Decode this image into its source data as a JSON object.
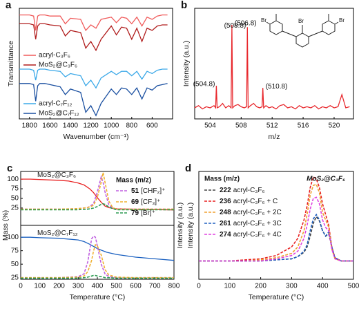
{
  "chart_data": [
    {
      "type": "line",
      "letter": "a",
      "xlabel": "Wavenumber (cm⁻¹)",
      "ylabel": "Transmittance",
      "xlim": [
        1900,
        400
      ],
      "xticks": [
        1800,
        1600,
        1400,
        1200,
        1000,
        800,
        600
      ],
      "ylim": [
        0,
        100
      ],
      "x": [
        1900,
        1850,
        1800,
        1760,
        1740,
        1720,
        1700,
        1650,
        1600,
        1500,
        1450,
        1400,
        1300,
        1250,
        1200,
        1150,
        1100,
        1000,
        950,
        900,
        850,
        800,
        750,
        700,
        650,
        600,
        550,
        500,
        450
      ],
      "series": [
        {
          "name": "acryl-C₃F₆",
          "color": "#f05a5a",
          "values": [
            94,
            94,
            94,
            93,
            80,
            93,
            94,
            94,
            93,
            93,
            86,
            91,
            90,
            80,
            85,
            82,
            90,
            92,
            87,
            92,
            91,
            86,
            92,
            84,
            92,
            90,
            93,
            94,
            94
          ]
        },
        {
          "name": "MoS₂@C₃F₆",
          "color": "#b01c1c",
          "values": [
            86,
            86,
            86,
            85,
            72,
            84,
            86,
            86,
            85,
            84,
            75,
            80,
            78,
            64,
            70,
            62,
            72,
            84,
            76,
            83,
            82,
            72,
            82,
            70,
            82,
            80,
            84,
            85,
            85
          ]
        },
        {
          "name": "acryl-C₇F₁₂",
          "color": "#3aa8e8",
          "values": [
            45,
            45,
            45,
            44,
            35,
            44,
            45,
            45,
            44,
            43,
            38,
            41,
            39,
            30,
            35,
            28,
            37,
            43,
            40,
            43,
            43,
            39,
            43,
            36,
            43,
            41,
            44,
            45,
            45
          ]
        },
        {
          "name": "MoS₂@C₇F₁₂",
          "color": "#1a4fa0",
          "values": [
            32,
            32,
            32,
            31,
            16,
            30,
            32,
            32,
            31,
            29,
            22,
            27,
            24,
            6,
            12,
            3,
            14,
            27,
            22,
            28,
            27,
            22,
            28,
            18,
            28,
            26,
            30,
            31,
            32
          ]
        }
      ]
    },
    {
      "type": "line",
      "letter": "b",
      "xlabel": "m/z",
      "ylabel": "Intensity (a.u.)",
      "xlim": [
        502,
        522.5
      ],
      "xticks": [
        504,
        508,
        512,
        516,
        520
      ],
      "ylim": [
        0,
        100
      ],
      "structure_labels": [
        "Br",
        "Br",
        "Br"
      ],
      "x": [
        502,
        502.5,
        503,
        503.5,
        504,
        504.5,
        504.7,
        504.8,
        504.9,
        505.2,
        505.6,
        506,
        506.4,
        506.7,
        506.8,
        506.9,
        507.2,
        507.6,
        508,
        508.4,
        508.7,
        508.8,
        508.9,
        509.2,
        509.6,
        510,
        510.4,
        510.7,
        510.8,
        510.9,
        511.2,
        511.6,
        512,
        512.5,
        513,
        513.5,
        514,
        514.5,
        515,
        515.5,
        516,
        516.5,
        517,
        517.5,
        518,
        518.5,
        519,
        519.5,
        520,
        520.5,
        521,
        521.5,
        522
      ],
      "series": [
        {
          "color": "#e8292e",
          "values": [
            10,
            12,
            9,
            11,
            10,
            12,
            10,
            30,
            10,
            11,
            14,
            10,
            12,
            10,
            85,
            10,
            12,
            13,
            11,
            10,
            11,
            83,
            10,
            12,
            14,
            11,
            10,
            11,
            28,
            10,
            12,
            10,
            11,
            9,
            12,
            13,
            10,
            11,
            9,
            12,
            10,
            11,
            10,
            12,
            9,
            11,
            10,
            12,
            10,
            11,
            22,
            10,
            11
          ]
        }
      ],
      "annotations": [
        {
          "text": "(504.8)",
          "x": 504.8,
          "y": 30
        },
        {
          "text": "(506.8)",
          "x": 506.8,
          "y": 85
        },
        {
          "text": "(508.8)",
          "x": 508.8,
          "y": 83
        },
        {
          "text": "(510.8)",
          "x": 510.8,
          "y": 28
        }
      ]
    },
    {
      "type": "tga",
      "letter": "c",
      "xlabel": "Temperature (°C)",
      "ylabel": "Mass (%)",
      "y2label": "Intensity (a.u.)",
      "xlim": [
        0,
        800
      ],
      "xticks": [
        0,
        100,
        200,
        300,
        400,
        500,
        600,
        700,
        800
      ],
      "legend_title": "Mass (m/z)",
      "panels": [
        {
          "ylim": [
            -20,
            120
          ],
          "yticks": [
            25,
            50,
            75,
            100
          ],
          "y2lim": [
            0,
            100
          ],
          "series": [
            {
              "name": "MoS₂@C₃F₆",
              "color": "#e82020",
              "x": [
                0,
                50,
                100,
                150,
                200,
                250,
                300,
                330,
                360,
                380,
                400,
                420,
                440,
                460,
                500,
                600,
                700,
                800
              ],
              "values": [
                100,
                100,
                99,
                98,
                97,
                95,
                90,
                85,
                75,
                65,
                52,
                40,
                30,
                26,
                23,
                22,
                21,
                20
              ]
            },
            {
              "mz": 51,
              "label": "[CHF₂]⁺",
              "color": "#c060e0",
              "dash": true,
              "axis": "y2",
              "x": [
                0,
                100,
                200,
                300,
                350,
                380,
                400,
                420,
                430,
                440,
                460,
                480,
                500,
                600,
                700,
                800
              ],
              "values": [
                30,
                30,
                30,
                31,
                33,
                40,
                62,
                90,
                80,
                62,
                38,
                32,
                30,
                30,
                30,
                30
              ]
            },
            {
              "mz": 69,
              "label": "[CF₃]⁺",
              "color": "#f0b030",
              "dash": true,
              "axis": "y2",
              "x": [
                0,
                100,
                200,
                300,
                350,
                380,
                400,
                420,
                430,
                440,
                460,
                480,
                500,
                600,
                700,
                800
              ],
              "values": [
                30,
                30,
                30,
                31,
                33,
                37,
                52,
                80,
                98,
                80,
                45,
                33,
                30,
                30,
                30,
                30
              ]
            },
            {
              "mz": 79,
              "label": "[Br]⁺",
              "color": "#2a9a50",
              "dash": true,
              "axis": "y2",
              "x": [
                0,
                100,
                200,
                300,
                350,
                380,
                400,
                420,
                430,
                440,
                460,
                480,
                500,
                600,
                700,
                800
              ],
              "values": [
                29,
                29,
                29,
                29,
                30,
                32,
                35,
                39,
                40,
                39,
                34,
                31,
                29,
                29,
                29,
                29
              ]
            }
          ]
        },
        {
          "ylim": [
            22,
            122
          ],
          "yticks": [
            25,
            50,
            75,
            100
          ],
          "y2lim": [
            0,
            100
          ],
          "series": [
            {
              "name": "MoS₂@C₇F₁₂",
              "color": "#1a60c0",
              "x": [
                0,
                50,
                100,
                200,
                300,
                330,
                360,
                380,
                400,
                420,
                450,
                500,
                600,
                700,
                800
              ],
              "values": [
                100,
                100,
                99,
                98,
                95,
                92,
                87,
                83,
                79,
                76,
                72,
                68,
                63,
                60,
                57
              ]
            },
            {
              "color": "#c060e0",
              "dash": true,
              "axis": "y2",
              "x": [
                0,
                100,
                200,
                300,
                330,
                350,
                370,
                380,
                390,
                400,
                420,
                440,
                460,
                500,
                600,
                700,
                800
              ],
              "values": [
                3,
                3,
                3,
                5,
                10,
                32,
                75,
                80,
                78,
                62,
                28,
                10,
                5,
                3,
                3,
                3,
                3
              ]
            },
            {
              "color": "#f0b030",
              "dash": true,
              "axis": "y2",
              "x": [
                0,
                100,
                200,
                300,
                330,
                350,
                370,
                380,
                390,
                400,
                420,
                440,
                460,
                500,
                600,
                700,
                800
              ],
              "values": [
                3,
                3,
                3,
                4,
                6,
                14,
                35,
                52,
                64,
                62,
                45,
                18,
                8,
                4,
                3,
                3,
                3
              ]
            },
            {
              "color": "#2a9a50",
              "dash": true,
              "axis": "y2",
              "x": [
                0,
                100,
                200,
                300,
                330,
                350,
                370,
                380,
                390,
                400,
                420,
                440,
                460,
                500,
                600,
                700,
                800
              ],
              "values": [
                2,
                2,
                2,
                2,
                3,
                4,
                6,
                7,
                7,
                6,
                5,
                3,
                3,
                2,
                2,
                2,
                2
              ]
            }
          ]
        }
      ]
    },
    {
      "type": "line",
      "letter": "d",
      "xlabel": "Temperature (°C)",
      "ylabel": "Intensity (a.u.)",
      "annotation": "MoS₂@C₃F₆",
      "legend_title": "Mass (m/z)",
      "xlim": [
        0,
        500
      ],
      "xticks": [
        0,
        100,
        200,
        300,
        400,
        500
      ],
      "ylim": [
        0,
        100
      ],
      "x": [
        0,
        50,
        100,
        150,
        200,
        250,
        300,
        320,
        340,
        350,
        360,
        370,
        380,
        390,
        400,
        410,
        420,
        430,
        440,
        460,
        500
      ],
      "series": [
        {
          "mz": 222,
          "label": "acryl-C₃F₆",
          "color": "#404040",
          "dash": true,
          "values": [
            17,
            17,
            17,
            17,
            17,
            18,
            19,
            21,
            25,
            30,
            40,
            52,
            58,
            54,
            45,
            40,
            42,
            30,
            20,
            17,
            17
          ]
        },
        {
          "mz": 236,
          "label": "acryl-C₃F₆ + C",
          "color": "#e82020",
          "dash": true,
          "values": [
            17,
            17,
            17,
            18,
            19,
            22,
            30,
            38,
            55,
            68,
            85,
            95,
            93,
            85,
            70,
            60,
            50,
            30,
            20,
            17,
            17
          ]
        },
        {
          "mz": 248,
          "label": "acryl-C₃F₆ + 2C",
          "color": "#f0a030",
          "dash": true,
          "values": [
            17,
            17,
            17,
            17,
            18,
            20,
            24,
            30,
            45,
            60,
            78,
            87,
            88,
            80,
            62,
            55,
            48,
            28,
            19,
            17,
            17
          ]
        },
        {
          "mz": 261,
          "label": "acryl-C₃F₆ + 3C",
          "color": "#2060c0",
          "dash": true,
          "values": [
            17,
            17,
            17,
            17,
            17,
            18,
            19,
            21,
            26,
            32,
            45,
            56,
            60,
            55,
            45,
            40,
            44,
            30,
            20,
            17,
            17
          ]
        },
        {
          "mz": 274,
          "label": "acryl-C₃F₆ + 4C",
          "color": "#e040e0",
          "dash": true,
          "values": [
            17,
            17,
            17,
            17,
            17,
            19,
            22,
            26,
            38,
            50,
            65,
            75,
            76,
            70,
            55,
            48,
            45,
            28,
            19,
            17,
            17
          ]
        }
      ]
    }
  ]
}
